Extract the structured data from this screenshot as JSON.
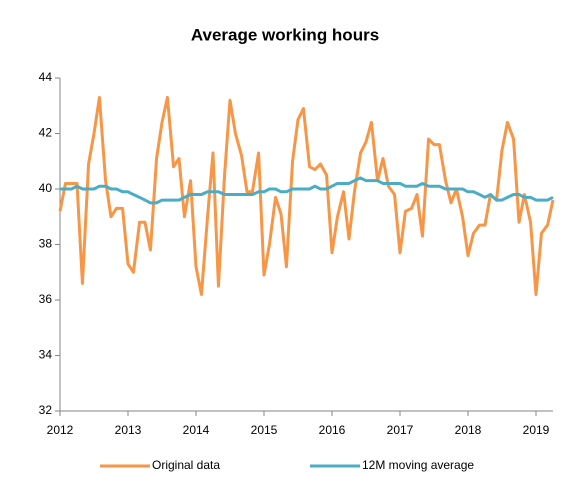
{
  "chart_data": {
    "type": "line",
    "title": "Average working hours",
    "x": [
      2012,
      2012.08,
      2012.17,
      2012.25,
      2012.33,
      2012.42,
      2012.5,
      2012.58,
      2012.67,
      2012.75,
      2012.83,
      2012.92,
      2013,
      2013.08,
      2013.17,
      2013.25,
      2013.33,
      2013.42,
      2013.5,
      2013.58,
      2013.67,
      2013.75,
      2013.83,
      2013.92,
      2014,
      2014.08,
      2014.17,
      2014.25,
      2014.33,
      2014.42,
      2014.5,
      2014.58,
      2014.67,
      2014.75,
      2014.83,
      2014.92,
      2015,
      2015.08,
      2015.17,
      2015.25,
      2015.33,
      2015.42,
      2015.5,
      2015.58,
      2015.67,
      2015.75,
      2015.83,
      2015.92,
      2016,
      2016.08,
      2016.17,
      2016.25,
      2016.33,
      2016.42,
      2016.5,
      2016.58,
      2016.67,
      2016.75,
      2016.83,
      2016.92,
      2017,
      2017.08,
      2017.17,
      2017.25,
      2017.33,
      2017.42,
      2017.5,
      2017.58,
      2017.67,
      2017.75,
      2017.83,
      2017.92,
      2018,
      2018.08,
      2018.17,
      2018.25,
      2018.33,
      2018.42,
      2018.5,
      2018.58,
      2018.67,
      2018.75,
      2018.83,
      2018.92,
      2019,
      2019.08,
      2019.17,
      2019.25
    ],
    "series": [
      {
        "name": "Original data",
        "color": "#f79646",
        "values": [
          39.2,
          40.2,
          40.2,
          40.2,
          36.6,
          40.9,
          42,
          43.3,
          40.3,
          39.0,
          39.3,
          39.3,
          37.3,
          37.0,
          38.8,
          38.8,
          37.8,
          41.1,
          42.4,
          43.3,
          40.8,
          41.1,
          39.0,
          40.3,
          37.2,
          36.2,
          39.0,
          41.3,
          36.5,
          40.5,
          43.2,
          42.0,
          41.2,
          39.9,
          39.9,
          41.3,
          36.9,
          38.0,
          39.7,
          39.1,
          37.2,
          41.0,
          42.5,
          42.9,
          40.8,
          40.7,
          40.9,
          40.5,
          37.7,
          39.0,
          39.9,
          38.2,
          39.9,
          41.3,
          41.7,
          42.4,
          40.3,
          41.1,
          40.1,
          39.8,
          37.7,
          39.2,
          39.3,
          39.8,
          38.3,
          41.8,
          41.6,
          41.6,
          40.3,
          39.5,
          40.0,
          39.0,
          37.6,
          38.4,
          38.7,
          38.7,
          39.8,
          39.6,
          41.4,
          42.4,
          41.8,
          38.8,
          39.8,
          38.8,
          36.2,
          38.4,
          38.7,
          39.6
        ]
      },
      {
        "name": "12M moving average",
        "color": "#4bacc6",
        "values": [
          40.0,
          40.0,
          40.0,
          40.1,
          40.0,
          40.0,
          40.0,
          40.1,
          40.1,
          40.0,
          40.0,
          39.9,
          39.9,
          39.8,
          39.7,
          39.6,
          39.5,
          39.5,
          39.6,
          39.6,
          39.6,
          39.6,
          39.7,
          39.8,
          39.8,
          39.8,
          39.9,
          39.9,
          39.9,
          39.8,
          39.8,
          39.8,
          39.8,
          39.8,
          39.8,
          39.9,
          39.9,
          40.0,
          40.0,
          39.9,
          39.9,
          40.0,
          40.0,
          40.0,
          40.0,
          40.1,
          40.0,
          40.0,
          40.1,
          40.2,
          40.2,
          40.2,
          40.3,
          40.4,
          40.3,
          40.3,
          40.3,
          40.2,
          40.2,
          40.2,
          40.2,
          40.1,
          40.1,
          40.1,
          40.2,
          40.1,
          40.1,
          40.1,
          40.0,
          40.0,
          40.0,
          40.0,
          39.9,
          39.9,
          39.8,
          39.7,
          39.8,
          39.6,
          39.6,
          39.7,
          39.8,
          39.8,
          39.7,
          39.7,
          39.6,
          39.6,
          39.6,
          39.7
        ]
      }
    ],
    "xlim": [
      2012,
      2019.25
    ],
    "xticks": [
      2012,
      2013,
      2014,
      2015,
      2016,
      2017,
      2018,
      2019
    ],
    "ylim": [
      32,
      44
    ],
    "yticks": [
      32,
      34,
      36,
      38,
      40,
      42,
      44
    ],
    "grid": false
  }
}
